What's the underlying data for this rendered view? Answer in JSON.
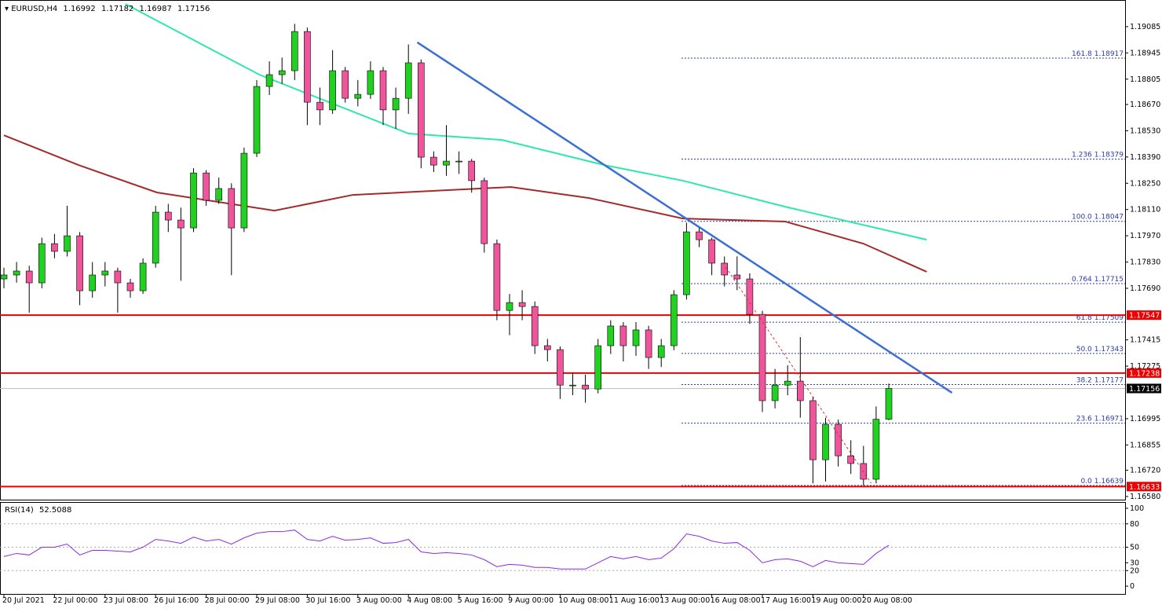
{
  "chart_data": {
    "type": "candlestick",
    "symbol": "EURUSD,H4",
    "up_color": "#22d022",
    "down_color": "#f0559c",
    "ylim": [
      1.16559,
      1.19227
    ],
    "yticks": [
      1.19085,
      1.18945,
      1.18805,
      {
        "value": 1.1867,
        "label": "1.18670"
      },
      {
        "value": 1.1853,
        "label": "1.18530"
      },
      {
        "value": 1.1839,
        "label": "1.18390"
      },
      {
        "value": 1.1825,
        "label": "1.18250"
      },
      {
        "value": 1.1811,
        "label": "1.18110"
      },
      {
        "value": 1.1797,
        "label": "1.17970"
      },
      {
        "value": 1.1783,
        "label": "1.17830"
      },
      {
        "value": 1.1769,
        "label": "1.17690"
      },
      1.17415,
      1.17275,
      1.16995,
      1.16855,
      {
        "value": 1.1672,
        "label": "1.16720"
      },
      {
        "value": 1.1658,
        "label": "1.16580"
      }
    ],
    "x_labels": [
      "20 Jul 2021",
      "22 Jul 00:00",
      "23 Jul 08:00",
      "26 Jul 16:00",
      "28 Jul 00:00",
      "29 Jul 08:00",
      "30 Jul 16:00",
      "3 Aug 00:00",
      "4 Aug 08:00",
      "5 Aug 16:00",
      "9 Aug 00:00",
      "10 Aug 08:00",
      "11 Aug 16:00",
      "13 Aug 00:00",
      "16 Aug 08:00",
      "17 Aug 16:00",
      "19 Aug 00:00",
      "20 Aug 08:00"
    ],
    "candles": [
      [
        1.1774,
        1.178,
        1.1769,
        1.17761
      ],
      [
        1.17761,
        1.1783,
        1.1772,
        1.17782
      ],
      [
        1.17782,
        1.1781,
        1.1756,
        1.17719
      ],
      [
        1.17719,
        1.1796,
        1.1769,
        1.17928
      ],
      [
        1.17928,
        1.1798,
        1.1785,
        1.17887
      ],
      [
        1.17887,
        1.1813,
        1.1786,
        1.1797
      ],
      [
        1.1797,
        1.1799,
        1.176,
        1.17677
      ],
      [
        1.17677,
        1.1783,
        1.1764,
        1.17761
      ],
      [
        1.17761,
        1.1783,
        1.177,
        1.17782
      ],
      [
        1.17782,
        1.178,
        1.1756,
        1.17719
      ],
      [
        1.17719,
        1.1774,
        1.1764,
        1.17677
      ],
      [
        1.17677,
        1.1785,
        1.1766,
        1.17824
      ],
      [
        1.17824,
        1.1813,
        1.178,
        1.18096
      ],
      [
        1.18096,
        1.1814,
        1.1799,
        1.18054
      ],
      [
        1.18054,
        1.1812,
        1.1773,
        1.18012
      ],
      [
        1.18012,
        1.1833,
        1.1799,
        1.18305
      ],
      [
        1.18305,
        1.1832,
        1.1813,
        1.18159
      ],
      [
        1.18159,
        1.1828,
        1.1814,
        1.18222
      ],
      [
        1.18222,
        1.1825,
        1.1776,
        1.18012
      ],
      [
        1.18012,
        1.1844,
        1.1799,
        1.1841
      ],
      [
        1.1841,
        1.188,
        1.1839,
        1.18766
      ],
      [
        1.18766,
        1.189,
        1.1872,
        1.18829
      ],
      [
        1.18829,
        1.1892,
        1.1878,
        1.1885
      ],
      [
        1.1885,
        1.191,
        1.188,
        1.19059
      ],
      [
        1.19059,
        1.1908,
        1.1856,
        1.18682
      ],
      [
        1.18682,
        1.1876,
        1.1856,
        1.18641
      ],
      [
        1.18641,
        1.1896,
        1.1862,
        1.1885
      ],
      [
        1.1885,
        1.1887,
        1.1868,
        1.18703
      ],
      [
        1.18703,
        1.188,
        1.1866,
        1.18724
      ],
      [
        1.18724,
        1.189,
        1.187,
        1.1885
      ],
      [
        1.1885,
        1.1887,
        1.1856,
        1.18641
      ],
      [
        1.18641,
        1.1876,
        1.1854,
        1.18703
      ],
      [
        1.18703,
        1.1899,
        1.1862,
        1.18892
      ],
      [
        1.18892,
        1.1891,
        1.1833,
        1.18389
      ],
      [
        1.18389,
        1.1842,
        1.1831,
        1.18347
      ],
      [
        1.18347,
        1.1856,
        1.1829,
        1.18368
      ],
      [
        1.18368,
        1.1842,
        1.183,
        1.18368
      ],
      [
        1.18368,
        1.1838,
        1.182,
        1.18264
      ],
      [
        1.18264,
        1.1828,
        1.1788,
        1.17928
      ],
      [
        1.17928,
        1.1795,
        1.1752,
        1.17572
      ],
      [
        1.17572,
        1.1766,
        1.1744,
        1.17614
      ],
      [
        1.17614,
        1.1768,
        1.1752,
        1.17593
      ],
      [
        1.17593,
        1.1762,
        1.1734,
        1.17384
      ],
      [
        1.17384,
        1.1742,
        1.173,
        1.17363
      ],
      [
        1.17363,
        1.1738,
        1.171,
        1.17174
      ],
      [
        1.17174,
        1.1724,
        1.1712,
        1.17174
      ],
      [
        1.17174,
        1.1723,
        1.1708,
        1.17153
      ],
      [
        1.17153,
        1.1742,
        1.1713,
        1.17384
      ],
      [
        1.17384,
        1.1752,
        1.1734,
        1.17489
      ],
      [
        1.17489,
        1.1751,
        1.173,
        1.17384
      ],
      [
        1.17384,
        1.1751,
        1.1733,
        1.17468
      ],
      [
        1.17468,
        1.1749,
        1.1726,
        1.17321
      ],
      [
        1.17321,
        1.1742,
        1.1727,
        1.17384
      ],
      [
        1.17384,
        1.1768,
        1.1736,
        1.17656
      ],
      [
        1.17656,
        1.1804,
        1.1763,
        1.17991
      ],
      [
        1.17991,
        1.1802,
        1.1791,
        1.17949
      ],
      [
        1.17949,
        1.1796,
        1.1776,
        1.17824
      ],
      [
        1.17824,
        1.1786,
        1.177,
        1.17761
      ],
      [
        1.17761,
        1.1786,
        1.1768,
        1.1774
      ],
      [
        1.1774,
        1.1777,
        1.175,
        1.17551
      ],
      [
        1.17551,
        1.1757,
        1.1703,
        1.17091
      ],
      [
        1.17091,
        1.1726,
        1.1705,
        1.17174
      ],
      [
        1.17174,
        1.1728,
        1.1712,
        1.17195
      ],
      [
        1.17195,
        1.1743,
        1.17,
        1.17091
      ],
      [
        1.17091,
        1.1711,
        1.1665,
        1.16776
      ],
      [
        1.16776,
        1.17,
        1.1666,
        1.16965
      ],
      [
        1.16965,
        1.1699,
        1.1674,
        1.16797
      ],
      [
        1.16797,
        1.1688,
        1.167,
        1.16756
      ],
      [
        1.16756,
        1.1685,
        1.16639,
        1.16672
      ],
      [
        1.16672,
        1.1706,
        1.1665,
        1.16992
      ],
      [
        1.16992,
        1.17182,
        1.16987,
        1.17156
      ]
    ],
    "moving_averages": [
      {
        "color": "#2ee8a8",
        "x": [
          9.6,
          20.2,
          32,
          39.4,
          47.5,
          53.7,
          61.8,
          73
        ],
        "values": [
          1.19206,
          1.18829,
          1.18515,
          1.18481,
          1.18347,
          1.18264,
          1.18125,
          1.17949
        ]
      },
      {
        "color": "#a52a2a",
        "x": [
          0,
          5.9,
          12.1,
          21.4,
          27.6,
          33.9,
          40.1,
          46.3,
          53.7,
          61.8,
          68,
          73
        ],
        "values": [
          1.18506,
          1.18347,
          1.18201,
          1.18104,
          1.18188,
          1.18209,
          1.1823,
          1.18171,
          1.18062,
          1.18046,
          1.17928,
          1.17778
        ]
      }
    ],
    "trendlines": [
      {
        "color": "#3b6fd6",
        "x": [
          32.7,
          75
        ],
        "values": [
          1.19001,
          1.17133
        ]
      },
      {
        "color": "#e03030",
        "dashed": true,
        "x": [
          57.1,
          68.6
        ],
        "values": [
          1.17803,
          1.16651
        ]
      }
    ],
    "levels": [
      {
        "value": 1.17547,
        "color": "#ee0000"
      },
      {
        "value": 1.17238,
        "color": "#ee0000"
      },
      {
        "value": 1.16633,
        "color": "#ee0000"
      }
    ],
    "fibonacci": {
      "color": "#2a3aa8",
      "x_start": 53.6,
      "levels": [
        {
          "ratio": "161.8",
          "price": 1.18917
        },
        {
          "ratio": "1.236",
          "price": 1.18379
        },
        {
          "ratio": "100.0",
          "price": 1.18047
        },
        {
          "ratio": "0.764",
          "price": 1.17715
        },
        {
          "ratio": "61.8",
          "price": 1.17509
        },
        {
          "ratio": "50.0",
          "price": 1.17343
        },
        {
          "ratio": "38.2",
          "price": 1.17177
        },
        {
          "ratio": "23.6",
          "price": 1.16971
        },
        {
          "ratio": "0.0",
          "price": 1.16639
        }
      ]
    }
  },
  "rsi": {
    "title": "RSI(14)",
    "color": "#8a2be2",
    "ylim": [
      -11,
      107
    ],
    "yticks": [
      100,
      80,
      50,
      30,
      20,
      0
    ],
    "level_lines": [
      80,
      50,
      20
    ],
    "values": [
      38,
      42,
      40,
      50,
      50,
      54,
      40,
      46,
      46,
      45,
      44,
      50,
      60,
      58,
      55,
      63,
      58,
      60,
      54,
      62,
      68,
      70,
      70,
      72,
      60,
      58,
      64,
      59,
      60,
      62,
      55,
      56,
      60,
      44,
      42,
      43,
      42,
      40,
      34,
      25,
      28,
      27,
      24,
      24,
      22,
      22,
      22,
      30,
      38,
      35,
      38,
      34,
      36,
      48,
      67,
      64,
      58,
      55,
      56,
      46,
      30,
      34,
      35,
      32,
      25,
      33,
      30,
      29,
      28,
      42,
      52.5088
    ]
  }
}
